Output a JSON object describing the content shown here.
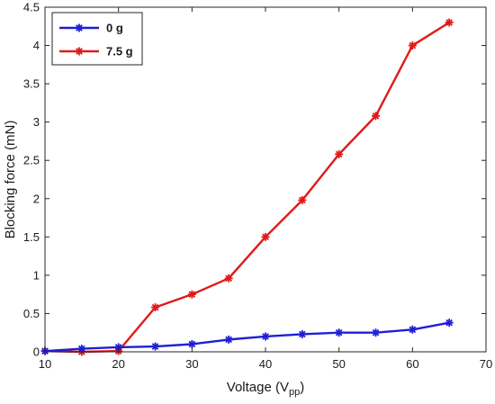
{
  "chart_data": {
    "type": "line",
    "xlabel": "Voltage (V",
    "xlabel_sub": "pp",
    "xlabel_end": ")",
    "ylabel": "Blocking force (mN)",
    "xlim": [
      10,
      70
    ],
    "ylim": [
      0,
      4.5
    ],
    "x_ticks": [
      "10",
      "20",
      "30",
      "40",
      "50",
      "60",
      "70"
    ],
    "y_ticks": [
      "0",
      "0.5",
      "1",
      "1.5",
      "2",
      "2.5",
      "3",
      "3.5",
      "4",
      "4.5"
    ],
    "grid": false,
    "legend_position": "top-left",
    "series": [
      {
        "name": "0 g",
        "color": "#1f1fd6",
        "marker": "asterisk",
        "x": [
          10,
          15,
          20,
          25,
          30,
          35,
          40,
          45,
          50,
          55,
          60,
          65
        ],
        "y": [
          0.01,
          0.04,
          0.06,
          0.07,
          0.1,
          0.16,
          0.2,
          0.23,
          0.25,
          0.25,
          0.29,
          0.38
        ]
      },
      {
        "name": "7.5 g",
        "color": "#e01a1a",
        "marker": "asterisk",
        "x": [
          10,
          15,
          20,
          25,
          30,
          35,
          40,
          45,
          50,
          55,
          60,
          65
        ],
        "y": [
          0.01,
          0.0,
          0.01,
          0.58,
          0.75,
          0.96,
          1.5,
          1.98,
          2.58,
          3.08,
          4.0,
          4.3
        ]
      }
    ]
  }
}
